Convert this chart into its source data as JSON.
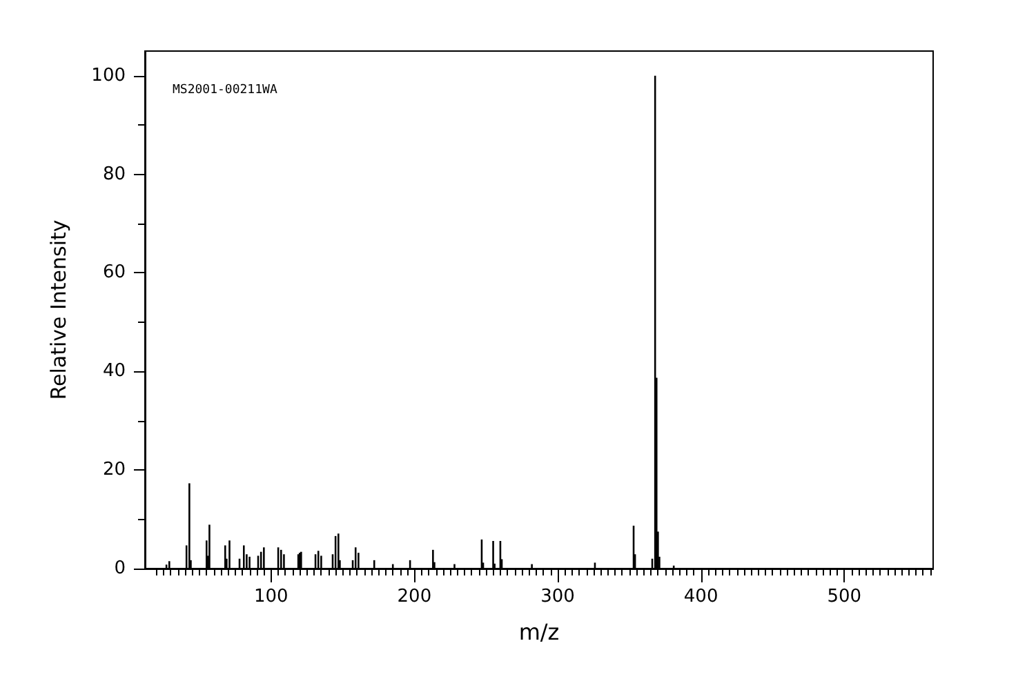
{
  "chart_data": {
    "type": "bar",
    "xlabel": "m/z",
    "ylabel": "Relative Intensity",
    "annotations": [
      "MS2001-00211WA"
    ],
    "x": [
      27,
      29,
      41,
      43,
      44,
      55,
      56,
      57,
      68,
      69,
      71,
      78,
      81,
      83,
      85,
      91,
      93,
      95,
      105,
      107,
      109,
      119,
      120,
      121,
      131,
      133,
      135,
      143,
      145,
      147,
      148,
      157,
      159,
      161,
      172,
      185,
      197,
      213,
      214,
      228,
      247,
      248,
      255,
      256,
      260,
      261,
      282,
      326,
      353,
      354,
      366,
      368,
      369,
      370,
      371,
      381
    ],
    "series": [
      {
        "color": "#000000",
        "values": [
          0.8,
          1.5,
          4.7,
          17.3,
          1.7,
          5.7,
          2.6,
          8.9,
          4.7,
          2,
          5.7,
          2,
          4.7,
          2.9,
          2.4,
          2.6,
          3.4,
          4.3,
          4.3,
          3.8,
          2.9,
          2.9,
          3.2,
          3.4,
          2.9,
          3.6,
          2.6,
          2.9,
          6.6,
          7.1,
          1.7,
          1.7,
          4.3,
          3.2,
          1.7,
          0.9,
          1.7,
          3.8,
          1.3,
          0.9,
          5.9,
          1.2,
          5.6,
          1,
          5.6,
          1.9,
          0.9,
          1.2,
          8.7,
          2.9,
          2,
          100,
          38.7,
          7.5,
          2.4,
          0.6
        ]
      }
    ],
    "xlim": [
      12,
      562
    ],
    "ylim": [
      0,
      105
    ],
    "xticks": [
      {
        "value": 20,
        "label": null
      },
      {
        "value": 25,
        "label": null
      },
      {
        "value": 30,
        "label": null
      },
      {
        "value": 35,
        "label": null
      },
      {
        "value": 40,
        "label": null
      },
      {
        "value": 45,
        "label": null
      },
      {
        "value": 50,
        "label": null
      },
      {
        "value": 55,
        "label": null
      },
      {
        "value": 60,
        "label": null
      },
      {
        "value": 65,
        "label": null
      },
      {
        "value": 70,
        "label": null
      },
      {
        "value": 75,
        "label": null
      },
      {
        "value": 80,
        "label": null
      },
      {
        "value": 85,
        "label": null
      },
      {
        "value": 90,
        "label": null
      },
      {
        "value": 95,
        "label": null
      },
      100,
      {
        "value": 105,
        "label": null
      },
      {
        "value": 110,
        "label": null
      },
      {
        "value": 115,
        "label": null
      },
      {
        "value": 120,
        "label": null
      },
      {
        "value": 125,
        "label": null
      },
      {
        "value": 130,
        "label": null
      },
      {
        "value": 135,
        "label": null
      },
      {
        "value": 140,
        "label": null
      },
      {
        "value": 145,
        "label": null
      },
      {
        "value": 150,
        "label": null
      },
      {
        "value": 155,
        "label": null
      },
      {
        "value": 160,
        "label": null
      },
      {
        "value": 165,
        "label": null
      },
      {
        "value": 170,
        "label": null
      },
      {
        "value": 175,
        "label": null
      },
      {
        "value": 180,
        "label": null
      },
      {
        "value": 185,
        "label": null
      },
      {
        "value": 190,
        "label": null
      },
      {
        "value": 195,
        "label": null
      },
      200,
      {
        "value": 205,
        "label": null
      },
      {
        "value": 210,
        "label": null
      },
      {
        "value": 215,
        "label": null
      },
      {
        "value": 220,
        "label": null
      },
      {
        "value": 225,
        "label": null
      },
      {
        "value": 230,
        "label": null
      },
      {
        "value": 235,
        "label": null
      },
      {
        "value": 240,
        "label": null
      },
      {
        "value": 245,
        "label": null
      },
      {
        "value": 250,
        "label": null
      },
      {
        "value": 255,
        "label": null
      },
      {
        "value": 260,
        "label": null
      },
      {
        "value": 265,
        "label": null
      },
      {
        "value": 270,
        "label": null
      },
      {
        "value": 275,
        "label": null
      },
      {
        "value": 280,
        "label": null
      },
      {
        "value": 285,
        "label": null
      },
      {
        "value": 290,
        "label": null
      },
      {
        "value": 295,
        "label": null
      },
      300,
      {
        "value": 305,
        "label": null
      },
      {
        "value": 310,
        "label": null
      },
      {
        "value": 315,
        "label": null
      },
      {
        "value": 320,
        "label": null
      },
      {
        "value": 325,
        "label": null
      },
      {
        "value": 330,
        "label": null
      },
      {
        "value": 335,
        "label": null
      },
      {
        "value": 340,
        "label": null
      },
      {
        "value": 345,
        "label": null
      },
      {
        "value": 350,
        "label": null
      },
      {
        "value": 355,
        "label": null
      },
      {
        "value": 360,
        "label": null
      },
      {
        "value": 365,
        "label": null
      },
      {
        "value": 370,
        "label": null
      },
      {
        "value": 375,
        "label": null
      },
      {
        "value": 380,
        "label": null
      },
      {
        "value": 385,
        "label": null
      },
      {
        "value": 390,
        "label": null
      },
      {
        "value": 395,
        "label": null
      },
      400,
      {
        "value": 405,
        "label": null
      },
      {
        "value": 410,
        "label": null
      },
      {
        "value": 415,
        "label": null
      },
      {
        "value": 420,
        "label": null
      },
      {
        "value": 425,
        "label": null
      },
      {
        "value": 430,
        "label": null
      },
      {
        "value": 435,
        "label": null
      },
      {
        "value": 440,
        "label": null
      },
      {
        "value": 445,
        "label": null
      },
      {
        "value": 450,
        "label": null
      },
      {
        "value": 455,
        "label": null
      },
      {
        "value": 460,
        "label": null
      },
      {
        "value": 465,
        "label": null
      },
      {
        "value": 470,
        "label": null
      },
      {
        "value": 475,
        "label": null
      },
      {
        "value": 480,
        "label": null
      },
      {
        "value": 485,
        "label": null
      },
      {
        "value": 490,
        "label": null
      },
      {
        "value": 495,
        "label": null
      },
      500,
      {
        "value": 505,
        "label": null
      },
      {
        "value": 510,
        "label": null
      },
      {
        "value": 515,
        "label": null
      },
      {
        "value": 520,
        "label": null
      },
      {
        "value": 525,
        "label": null
      },
      {
        "value": 530,
        "label": null
      },
      {
        "value": 535,
        "label": null
      },
      {
        "value": 540,
        "label": null
      },
      {
        "value": 545,
        "label": null
      },
      {
        "value": 550,
        "label": null
      },
      {
        "value": 555,
        "label": null
      },
      {
        "value": 560,
        "label": null
      }
    ],
    "yticks": [
      0,
      {
        "value": 10,
        "label": null
      },
      20,
      {
        "value": 30,
        "label": null
      },
      40,
      {
        "value": 50,
        "label": null
      },
      60,
      {
        "value": 70,
        "label": null
      },
      80,
      {
        "value": 90,
        "label": null
      },
      100
    ],
    "grid": false
  }
}
